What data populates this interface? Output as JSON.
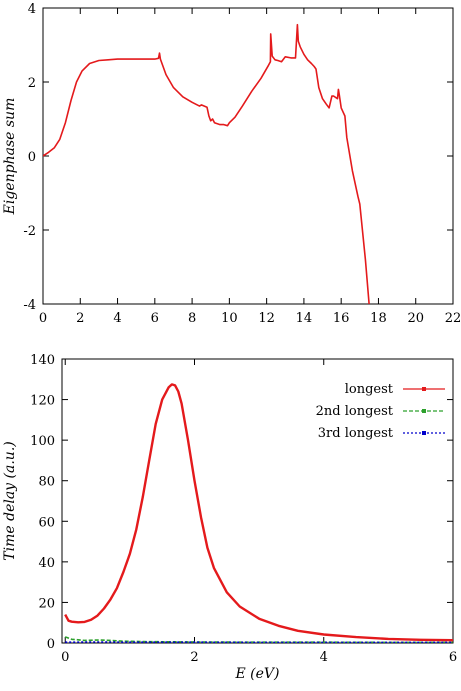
{
  "chart_data": [
    {
      "type": "line",
      "title": "",
      "xlabel": "",
      "ylabel": "Eigenphase sum",
      "xlim": [
        0,
        22
      ],
      "ylim": [
        -4,
        4
      ],
      "xticks": [
        0,
        2,
        4,
        6,
        8,
        10,
        12,
        14,
        16,
        18,
        20,
        22
      ],
      "yticks": [
        -4,
        -2,
        0,
        2,
        4
      ],
      "xtick_labels": [
        "0",
        "2",
        "4",
        "6",
        "8",
        "10",
        "12",
        "14",
        "16",
        "18",
        "20",
        "22"
      ],
      "ytick_labels": [
        "-4",
        "-2",
        "0",
        "2",
        "4"
      ],
      "grid": false,
      "legend": "none",
      "series": [
        {
          "color": "#e41a1c",
          "x": [
            0,
            0.3,
            0.6,
            0.9,
            1.2,
            1.5,
            1.8,
            2.1,
            2.5,
            3,
            3.5,
            4,
            4.5,
            5,
            5.5,
            6.0,
            6.2,
            6.25,
            6.3,
            6.6,
            7,
            7.5,
            8,
            8.4,
            8.5,
            8.8,
            8.9,
            9.0,
            9.1,
            9.2,
            9.3,
            9.5,
            9.7,
            9.9,
            10.0,
            10.3,
            10.7,
            11.2,
            11.7,
            12.1,
            12.2,
            12.22,
            12.3,
            12.45,
            12.6,
            12.8,
            13.0,
            13.3,
            13.55,
            13.65,
            13.7,
            13.8,
            14.0,
            14.2,
            14.4,
            14.55,
            14.65,
            14.8,
            15.0,
            15.2,
            15.35,
            15.5,
            15.6,
            15.8,
            15.85,
            15.9,
            16.0,
            16.2,
            16.3,
            16.6,
            16.9,
            17.0,
            17.3,
            17.5
          ],
          "y": [
            0.0,
            0.1,
            0.22,
            0.45,
            0.9,
            1.5,
            2.0,
            2.3,
            2.5,
            2.58,
            2.6,
            2.62,
            2.62,
            2.62,
            2.62,
            2.62,
            2.64,
            2.78,
            2.62,
            2.2,
            1.85,
            1.6,
            1.45,
            1.35,
            1.38,
            1.32,
            1.08,
            0.95,
            1.0,
            0.9,
            0.88,
            0.85,
            0.85,
            0.82,
            0.9,
            1.05,
            1.35,
            1.75,
            2.1,
            2.45,
            2.55,
            3.3,
            2.7,
            2.6,
            2.58,
            2.55,
            2.68,
            2.65,
            2.65,
            3.55,
            3.1,
            2.95,
            2.75,
            2.6,
            2.5,
            2.42,
            2.35,
            1.85,
            1.55,
            1.4,
            1.3,
            1.62,
            1.62,
            1.55,
            1.8,
            1.65,
            1.3,
            1.08,
            0.5,
            -0.4,
            -1.1,
            -1.3,
            -2.8,
            -4.0
          ]
        }
      ]
    },
    {
      "type": "line",
      "title": "",
      "xlabel": "E (eV)",
      "ylabel": "Time delay (a.u.)",
      "xlim": [
        -0.05,
        6
      ],
      "ylim": [
        0,
        140
      ],
      "xticks": [
        0,
        2,
        4,
        6
      ],
      "yticks": [
        0,
        20,
        40,
        60,
        80,
        100,
        120,
        140
      ],
      "xtick_labels": [
        "0",
        "2",
        "4",
        "6"
      ],
      "ytick_labels": [
        "0",
        "20",
        "40",
        "60",
        "80",
        "100",
        "120",
        "140"
      ],
      "grid": false,
      "legend": "top-right",
      "series": [
        {
          "name": "longest",
          "color": "#e41a1c",
          "x": [
            0,
            0.05,
            0.1,
            0.2,
            0.3,
            0.4,
            0.5,
            0.6,
            0.7,
            0.8,
            0.9,
            1.0,
            1.1,
            1.2,
            1.3,
            1.4,
            1.5,
            1.6,
            1.65,
            1.7,
            1.75,
            1.8,
            1.9,
            2.0,
            2.1,
            2.2,
            2.3,
            2.5,
            2.7,
            3.0,
            3.3,
            3.6,
            4.0,
            4.5,
            5.0,
            5.5,
            6.0
          ],
          "y": [
            14,
            11,
            10.5,
            10.2,
            10.4,
            11.5,
            13.5,
            17,
            21.5,
            27,
            35,
            44,
            56,
            72,
            90,
            108,
            120,
            126,
            127.5,
            127,
            124,
            118,
            100,
            80,
            62,
            47,
            37,
            25,
            18,
            12,
            8.5,
            6,
            4.2,
            2.9,
            2.0,
            1.6,
            1.4
          ]
        },
        {
          "name": "2nd longest",
          "color": "#2ca02c",
          "x": [
            0,
            0.1,
            0.3,
            0.5,
            0.7,
            0.9,
            1.2,
            1.6,
            2.0,
            3.0,
            4.0,
            5.0,
            6.0
          ],
          "y": [
            3.0,
            1.8,
            1.3,
            1.5,
            1.3,
            0.9,
            0.7,
            0.6,
            0.5,
            0.4,
            0.4,
            0.3,
            0.3
          ]
        },
        {
          "name": "3rd longest",
          "color": "#0000cc",
          "x": [
            0,
            0.5,
            1.0,
            2.0,
            3.0,
            4.0,
            5.0,
            6.0
          ],
          "y": [
            0.4,
            0.5,
            0.4,
            0.4,
            0.3,
            0.3,
            0.3,
            0.3
          ]
        }
      ]
    }
  ]
}
